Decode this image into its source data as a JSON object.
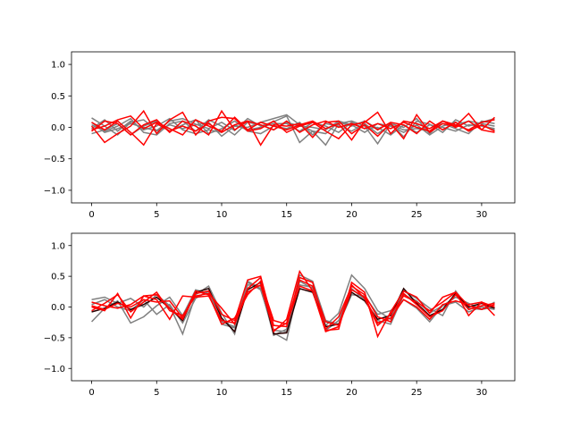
{
  "chart_data": [
    {
      "type": "line",
      "x": [
        0,
        1,
        2,
        3,
        4,
        5,
        6,
        7,
        8,
        9,
        10,
        11,
        12,
        13,
        14,
        15,
        16,
        17,
        18,
        19,
        20,
        21,
        22,
        23,
        24,
        25,
        26,
        27,
        28,
        29,
        30,
        31
      ],
      "xlim": [
        -1.55,
        32.55
      ],
      "ylim": [
        -1.2,
        1.2
      ],
      "xticks": [
        0,
        5,
        10,
        15,
        20,
        25,
        30
      ],
      "yticks": [
        -1.0,
        -0.5,
        0.0,
        0.5,
        1.0
      ],
      "xtick_labels": [
        "0",
        "5",
        "10",
        "15",
        "20",
        "25",
        "30"
      ],
      "ytick_labels": [
        "−1.0",
        "−0.5",
        "0.0",
        "0.5",
        "1.0"
      ],
      "title": "",
      "xlabel": "",
      "ylabel": "",
      "grid": false,
      "series_colors": {
        "gray": "#808080",
        "red": "#ff0000"
      },
      "series": [
        {
          "color": "gray",
          "values": [
            0.15,
            0.02,
            -0.12,
            0.08,
            0.12,
            -0.05,
            0.1,
            0.14,
            0.05,
            -0.02,
            0.08,
            -0.05,
            0.14,
            0.02,
            0.09,
            0.18,
            -0.24,
            -0.06,
            -0.1,
            0.08,
            0.02,
            0.1,
            -0.02,
            0.06,
            -0.15,
            0.1,
            0.05,
            -0.08,
            0.12,
            0.02,
            0.08,
            0.14
          ]
        },
        {
          "color": "gray",
          "values": [
            0.08,
            -0.08,
            -0.02,
            0.06,
            0.0,
            -0.06,
            0.04,
            -0.02,
            0.04,
            0.08,
            -0.14,
            0.02,
            0.0,
            0.08,
            0.14,
            0.2,
            0.04,
            -0.06,
            -0.28,
            0.06,
            0.1,
            0.02,
            -0.26,
            0.06,
            0.0,
            0.14,
            -0.1,
            0.1,
            0.04,
            0.1,
            0.06,
            0.02
          ]
        },
        {
          "color": "gray",
          "values": [
            -0.02,
            0.12,
            -0.06,
            0.1,
            -0.04,
            0.02,
            0.14,
            -0.04,
            -0.1,
            -0.04,
            -0.08,
            0.04,
            -0.04,
            0.0,
            0.06,
            0.06,
            -0.06,
            0.08,
            0.02,
            -0.08,
            0.08,
            -0.02,
            0.0,
            -0.12,
            0.04,
            -0.08,
            0.04,
            0.0,
            -0.06,
            0.04,
            0.02,
            -0.02
          ]
        },
        {
          "color": "gray",
          "values": [
            -0.1,
            -0.04,
            0.06,
            -0.12,
            0.02,
            0.1,
            -0.06,
            0.04,
            0.12,
            -0.1,
            -0.02,
            0.1,
            -0.06,
            -0.1,
            0.02,
            -0.02,
            0.08,
            -0.12,
            0.06,
            0.02,
            -0.06,
            0.06,
            -0.1,
            0.04,
            -0.04,
            -0.02,
            -0.06,
            0.06,
            -0.02,
            -0.1,
            0.1,
            0.06
          ]
        },
        {
          "color": "gray",
          "values": [
            0.04,
            -0.06,
            0.02,
            0.14,
            -0.08,
            -0.12,
            0.06,
            0.1,
            -0.06,
            0.12,
            0.02,
            -0.12,
            0.08,
            0.04,
            -0.04,
            0.08,
            0.02,
            0.0,
            -0.04,
            0.1,
            0.04,
            -0.08,
            0.06,
            0.02,
            -0.08,
            0.04,
            -0.12,
            0.02,
            0.08,
            -0.06,
            0.04,
            -0.04
          ]
        },
        {
          "color": "red",
          "values": [
            -0.06,
            0.1,
            0.06,
            -0.12,
            0.04,
            0.12,
            -0.08,
            0.1,
            0.02,
            -0.12,
            0.26,
            -0.04,
            0.1,
            -0.28,
            0.04,
            0.02,
            0.06,
            -0.16,
            0.08,
            0.1,
            -0.1,
            0.04,
            -0.14,
            0.06,
            -0.18,
            0.2,
            -0.08,
            0.06,
            0.02,
            0.22,
            -0.04,
            -0.08
          ]
        },
        {
          "color": "red",
          "values": [
            0.02,
            -0.24,
            -0.1,
            0.02,
            0.26,
            -0.1,
            0.12,
            0.24,
            -0.12,
            0.1,
            0.16,
            0.14,
            -0.06,
            -0.02,
            0.1,
            -0.08,
            0.02,
            0.08,
            -0.06,
            -0.18,
            0.04,
            0.08,
            0.24,
            -0.1,
            0.1,
            0.06,
            -0.02,
            0.1,
            0.0,
            0.1,
            -0.04,
            0.16
          ]
        },
        {
          "color": "red",
          "values": [
            -0.04,
            0.02,
            0.12,
            0.18,
            -0.02,
            0.08,
            -0.02,
            -0.12,
            0.12,
            0.02,
            -0.06,
            0.16,
            -0.04,
            0.08,
            0.02,
            -0.04,
            0.04,
            0.1,
            -0.02,
            0.06,
            -0.2,
            0.1,
            -0.04,
            0.08,
            0.04,
            -0.1,
            0.1,
            -0.04,
            0.08,
            -0.06,
            0.04,
            -0.06
          ]
        },
        {
          "color": "red",
          "values": [
            0.08,
            -0.04,
            0.1,
            -0.08,
            -0.28,
            0.06,
            -0.06,
            0.02,
            -0.06,
            0.06,
            -0.08,
            0.04,
            0.1,
            0.04,
            -0.04,
            0.1,
            -0.08,
            0.04,
            0.1,
            0.0,
            0.06,
            -0.02,
            0.06,
            -0.02,
            0.08,
            0.0,
            -0.06,
            0.1,
            0.04,
            -0.04,
            0.08,
            0.12
          ]
        }
      ]
    },
    {
      "type": "line",
      "x": [
        0,
        1,
        2,
        3,
        4,
        5,
        6,
        7,
        8,
        9,
        10,
        11,
        12,
        13,
        14,
        15,
        16,
        17,
        18,
        19,
        20,
        21,
        22,
        23,
        24,
        25,
        26,
        27,
        28,
        29,
        30,
        31
      ],
      "xlim": [
        -1.55,
        32.55
      ],
      "ylim": [
        -1.2,
        1.2
      ],
      "xticks": [
        0,
        5,
        10,
        15,
        20,
        25,
        30
      ],
      "yticks": [
        -1.0,
        -0.5,
        0.0,
        0.5,
        1.0
      ],
      "xtick_labels": [
        "0",
        "5",
        "10",
        "15",
        "20",
        "25",
        "30"
      ],
      "ytick_labels": [
        "−1.0",
        "−0.5",
        "0.0",
        "0.5",
        "1.0"
      ],
      "title": "",
      "xlabel": "",
      "ylabel": "",
      "grid": false,
      "series_colors": {
        "gray": "#808080",
        "red": "#ff0000",
        "dark": "#2a0000"
      },
      "series": [
        {
          "color": "gray",
          "values": [
            0.12,
            0.16,
            0.06,
            0.14,
            0.0,
            0.2,
            0.02,
            -0.44,
            0.2,
            0.34,
            -0.1,
            -0.44,
            0.42,
            0.3,
            -0.42,
            -0.54,
            0.42,
            0.3,
            -0.3,
            -0.1,
            0.52,
            0.3,
            -0.06,
            -0.2,
            0.26,
            0.14,
            -0.02,
            -0.14,
            0.26,
            -0.02,
            -0.04,
            0.08
          ]
        },
        {
          "color": "gray",
          "values": [
            -0.24,
            -0.02,
            0.1,
            -0.26,
            -0.16,
            0.02,
            0.16,
            -0.14,
            0.28,
            0.22,
            -0.28,
            -0.34,
            0.36,
            0.34,
            -0.46,
            -0.36,
            0.52,
            0.42,
            -0.22,
            -0.28,
            0.2,
            0.18,
            -0.12,
            -0.06,
            0.12,
            -0.02,
            -0.24,
            0.02,
            0.08,
            -0.08,
            0.0,
            -0.04
          ]
        },
        {
          "color": "gray",
          "values": [
            0.04,
            0.12,
            0.0,
            -0.06,
            0.12,
            -0.12,
            0.04,
            -0.26,
            0.14,
            0.26,
            -0.24,
            -0.32,
            0.4,
            0.28,
            -0.38,
            -0.4,
            0.36,
            0.32,
            -0.38,
            -0.22,
            0.3,
            0.12,
            -0.22,
            -0.28,
            0.2,
            0.1,
            -0.1,
            0.02,
            0.16,
            0.06,
            -0.04,
            0.0
          ]
        },
        {
          "color": "dark",
          "values": [
            -0.08,
            -0.02,
            0.08,
            -0.04,
            0.04,
            0.16,
            -0.02,
            -0.22,
            0.24,
            0.3,
            -0.18,
            -0.4,
            0.28,
            0.4,
            -0.44,
            -0.42,
            0.3,
            0.24,
            -0.32,
            -0.28,
            0.24,
            0.1,
            -0.2,
            -0.14,
            0.3,
            0.06,
            -0.14,
            -0.04,
            0.22,
            0.0,
            0.06,
            -0.02
          ]
        },
        {
          "color": "red",
          "values": [
            0.0,
            -0.06,
            0.22,
            -0.18,
            0.18,
            0.12,
            -0.2,
            0.18,
            0.16,
            0.18,
            -0.22,
            -0.26,
            0.3,
            0.48,
            -0.4,
            -0.2,
            0.58,
            0.26,
            -0.38,
            -0.36,
            0.4,
            0.24,
            -0.48,
            -0.08,
            0.26,
            0.16,
            -0.1,
            0.16,
            0.24,
            -0.14,
            0.08,
            -0.14
          ]
        },
        {
          "color": "red",
          "values": [
            0.08,
            0.02,
            -0.02,
            0.04,
            0.18,
            0.2,
            -0.02,
            -0.2,
            0.22,
            0.26,
            -0.12,
            -0.22,
            0.44,
            0.5,
            -0.3,
            -0.32,
            0.48,
            0.4,
            -0.36,
            -0.16,
            0.34,
            0.2,
            -0.16,
            -0.24,
            0.22,
            0.04,
            -0.16,
            -0.06,
            0.2,
            -0.04,
            0.02,
            0.06
          ]
        },
        {
          "color": "red",
          "values": [
            -0.06,
            0.06,
            0.2,
            -0.08,
            0.08,
            0.24,
            -0.06,
            -0.14,
            0.18,
            0.22,
            -0.02,
            -0.28,
            0.24,
            0.36,
            -0.38,
            -0.26,
            0.44,
            0.34,
            -0.24,
            -0.3,
            0.36,
            0.14,
            -0.3,
            -0.12,
            0.18,
            0.08,
            -0.06,
            0.08,
            0.24,
            0.02,
            -0.04,
            0.04
          ]
        },
        {
          "color": "red",
          "values": [
            0.02,
            -0.04,
            0.06,
            0.0,
            0.12,
            0.08,
            0.1,
            -0.18,
            0.26,
            0.2,
            -0.28,
            -0.18,
            0.2,
            0.42,
            -0.22,
            -0.28,
            0.34,
            0.26,
            -0.4,
            -0.32,
            0.28,
            0.16,
            -0.26,
            -0.18,
            0.12,
            0.0,
            -0.2,
            0.04,
            0.1,
            0.04,
            0.08,
            0.0
          ]
        }
      ]
    }
  ]
}
